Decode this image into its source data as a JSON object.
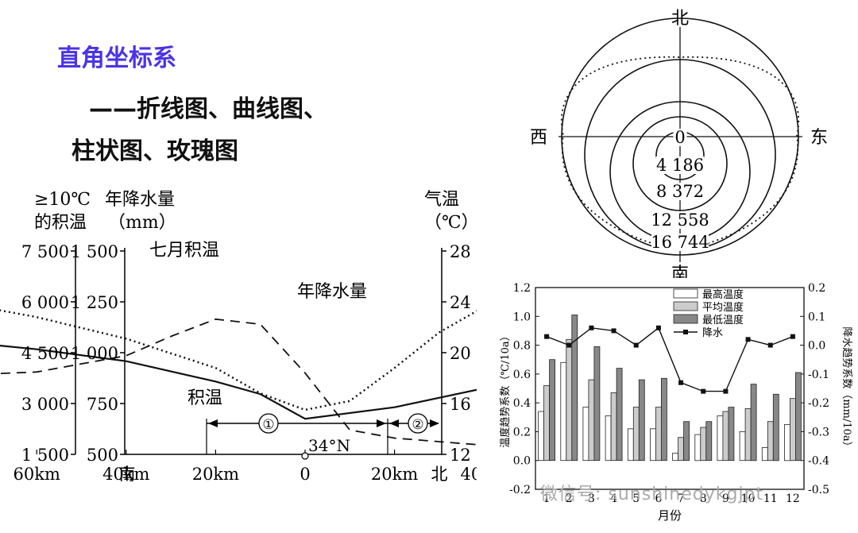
{
  "headings": {
    "main": "直角坐标系",
    "sub1": "——折线图、曲线图、",
    "sub2": "柱状图、玫瑰图"
  },
  "watermark": "微信号: sunshinedykgjpt",
  "chart_data": [
    {
      "type": "line",
      "left_axis1": {
        "label_line1": "≥10℃",
        "label_line2": "的积温",
        "ticks": [
          1500,
          3000,
          4500,
          6000,
          7500
        ],
        "tick_labels": [
          "1 500",
          "3 000",
          "4 500",
          "6 000",
          "7 500"
        ],
        "range": [
          1500,
          7500
        ]
      },
      "left_axis2": {
        "label_line1": "年降水量",
        "label_line2": "（mm）",
        "ticks": [
          500,
          750,
          1000,
          1250,
          1500
        ],
        "tick_labels": [
          "500",
          "750",
          "1 000",
          "1 250",
          "1 500"
        ],
        "range": [
          500,
          1500
        ]
      },
      "right_axis": {
        "label_line1": "气温",
        "label_line2": "（℃）",
        "ticks": [
          12,
          16,
          20,
          24,
          28
        ],
        "tick_labels": [
          "12",
          "16",
          "20",
          "24",
          "28"
        ],
        "range": [
          12,
          28
        ]
      },
      "x_tick_labels": [
        "南",
        "60km",
        "40km",
        "20km",
        "0",
        "20km",
        "40km",
        "北"
      ],
      "x": [
        -100,
        -60,
        -40,
        -20,
        0,
        20,
        40,
        70
      ],
      "series": [
        {
          "name": "七月积温",
          "style": "dotted",
          "axis": "right",
          "x": [
            -100,
            -80,
            -60,
            -40,
            -20,
            -10,
            0,
            10,
            20,
            30,
            40,
            50,
            60,
            70
          ],
          "values": [
            24.9,
            24.1,
            22.8,
            21.1,
            18.8,
            16.8,
            15.5,
            16.2,
            18.8,
            21.6,
            23.6,
            24.6,
            25.1,
            25.4
          ]
        },
        {
          "name": "年降水量",
          "style": "dashed",
          "axis": "left2",
          "x": [
            -100,
            -80,
            -60,
            -40,
            -30,
            -20,
            -10,
            0,
            10,
            20,
            40,
            60,
            70
          ],
          "values": [
            885,
            887,
            905,
            985,
            1080,
            1165,
            1140,
            900,
            620,
            580,
            545,
            520,
            508
          ]
        },
        {
          "name": "积温",
          "style": "solid",
          "axis": "left1",
          "x": [
            -100,
            -80,
            -60,
            -40,
            -20,
            -10,
            0,
            20,
            40,
            50,
            60,
            70
          ],
          "values": [
            5040,
            4860,
            4600,
            4250,
            3650,
            3280,
            2550,
            2890,
            3450,
            4180,
            4180,
            4140
          ]
        }
      ],
      "annotations": [
        "七月积温",
        "年降水量",
        "积温",
        "①",
        "②",
        "34°N"
      ]
    },
    {
      "type": "rose",
      "directions": {
        "north": "北",
        "south": "南",
        "west": "西",
        "east": "东"
      },
      "ring_labels": [
        "0",
        "4 186",
        "8 372",
        "12 558",
        "16 744"
      ]
    },
    {
      "type": "bar",
      "categories": [
        "1",
        "2",
        "3",
        "4",
        "5",
        "6",
        "7",
        "8",
        "9",
        "10",
        "11",
        "12"
      ],
      "xlabel": "月份",
      "ylabel_left": "温度趋势系数（℃/10a）",
      "ylabel_right": "降水趋势系数（mm/10a）",
      "ylim_left": [
        -0.2,
        1.2
      ],
      "yticks_left": [
        "1.2",
        "1.0",
        "0.8",
        "0.6",
        "0.4",
        "0.2",
        "0.0",
        "-0.2"
      ],
      "ylim_right": [
        -0.5,
        0.2
      ],
      "yticks_right": [
        "0.2",
        "0.1",
        "0.0",
        "-0.1",
        "-0.2",
        "-0.3",
        "-0.4",
        "-0.5"
      ],
      "series": [
        {
          "name": "最高温度",
          "color": "#ffffff",
          "values": [
            0.34,
            0.68,
            0.37,
            0.31,
            0.22,
            0.22,
            0.05,
            0.18,
            0.31,
            0.2,
            0.09,
            0.25
          ]
        },
        {
          "name": "平均温度",
          "color": "#cccccc",
          "values": [
            0.52,
            0.84,
            0.56,
            0.47,
            0.37,
            0.37,
            0.16,
            0.23,
            0.34,
            0.36,
            0.27,
            0.43
          ]
        },
        {
          "name": "最低温度",
          "color": "#888888",
          "values": [
            0.7,
            1.01,
            0.79,
            0.64,
            0.56,
            0.57,
            0.27,
            0.27,
            0.37,
            0.53,
            0.46,
            0.61
          ]
        }
      ],
      "line_series": {
        "name": "降水",
        "values": [
          0.03,
          0.0,
          0.06,
          0.05,
          0.0,
          0.06,
          -0.13,
          -0.16,
          -0.16,
          0.02,
          0.0,
          0.03
        ]
      },
      "legend_position": "top"
    }
  ]
}
